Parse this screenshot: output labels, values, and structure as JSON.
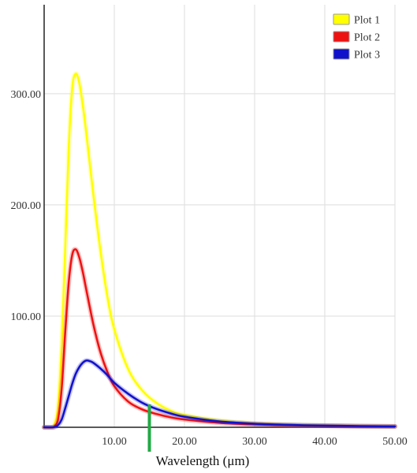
{
  "chart_data": {
    "type": "line",
    "title": "",
    "xlabel": "Wavelength (μm)",
    "ylabel": "",
    "xlim": [
      0,
      50
    ],
    "ylim": [
      0,
      380
    ],
    "x_ticks": [
      10,
      20,
      30,
      40,
      50
    ],
    "x_tick_labels": [
      "10.00",
      "20.00",
      "30.00",
      "40.00",
      "50.00"
    ],
    "y_ticks": [
      100,
      200,
      300
    ],
    "y_tick_labels": [
      "100.00",
      "200.00",
      "300.00"
    ],
    "grid": true,
    "legend_position": "top-right",
    "series": [
      {
        "name": "Plot 1",
        "color": "#ffff00",
        "x": [
          0,
          1,
          1.5,
          2,
          2.5,
          3,
          3.5,
          4,
          4.5,
          5,
          5.5,
          6,
          7,
          8,
          9,
          10,
          12,
          14,
          16,
          18,
          20,
          25,
          30,
          35,
          40,
          45,
          50
        ],
        "values": [
          0,
          0,
          3,
          20,
          75,
          160,
          250,
          305,
          318,
          310,
          290,
          265,
          210,
          160,
          118,
          88,
          52,
          33,
          22,
          15,
          11,
          6,
          3.5,
          2.3,
          1.6,
          1.1,
          0.8
        ]
      },
      {
        "name": "Plot 2",
        "color": "#ee1111",
        "x": [
          0,
          1,
          1.5,
          2,
          2.5,
          3,
          3.5,
          4,
          4.5,
          5,
          5.5,
          6,
          7,
          8,
          9,
          10,
          12,
          14,
          16,
          18,
          20,
          25,
          30,
          35,
          40,
          45,
          50
        ],
        "values": [
          0,
          0,
          1,
          8,
          35,
          85,
          130,
          155,
          160,
          153,
          140,
          124,
          93,
          68,
          50,
          37,
          23,
          16,
          12,
          9,
          7,
          4,
          2.6,
          1.8,
          1.3,
          0.9,
          0.7
        ]
      },
      {
        "name": "Plot 3",
        "color": "#1111cc",
        "x": [
          0,
          1,
          1.5,
          2,
          2.5,
          3,
          3.5,
          4,
          4.5,
          5,
          5.5,
          6,
          6.5,
          7,
          8,
          9,
          10,
          12,
          14,
          16,
          18,
          20,
          25,
          30,
          35,
          40,
          45,
          50
        ],
        "values": [
          0,
          0,
          0.3,
          2,
          7,
          17,
          28,
          39,
          48,
          54,
          58,
          60,
          59.5,
          58,
          53,
          47,
          40,
          30,
          22,
          16.5,
          12.5,
          9.5,
          5.2,
          3.2,
          2.1,
          1.5,
          1.1,
          0.8
        ]
      }
    ],
    "marker": {
      "x": 15,
      "color": "#22aa44"
    }
  }
}
